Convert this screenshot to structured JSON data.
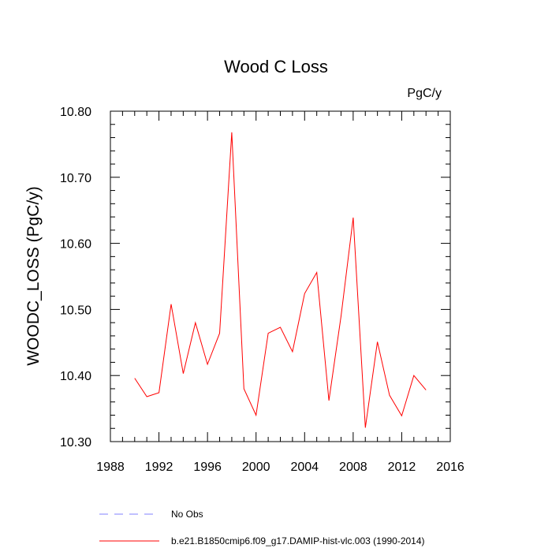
{
  "chart_data": {
    "type": "line",
    "title": "Wood C Loss",
    "units_label": "PgC/y",
    "xlabel": "",
    "ylabel": "WOODC_LOSS  (PgC/y)",
    "xlim": [
      1988,
      2016
    ],
    "ylim": [
      10.3,
      10.8
    ],
    "x_ticks": [
      1988,
      1992,
      1996,
      2000,
      2004,
      2008,
      2012,
      2016
    ],
    "x_tick_labels": [
      "1988",
      "1992",
      "1996",
      "2000",
      "2004",
      "2008",
      "2012",
      "2016"
    ],
    "y_ticks": [
      10.3,
      10.4,
      10.5,
      10.6,
      10.7,
      10.8
    ],
    "y_tick_labels": [
      "10.30",
      "10.40",
      "10.50",
      "10.60",
      "10.70",
      "10.80"
    ],
    "grid": false,
    "series": [
      {
        "name": "b.e21.B1850cmip6.f09_g17.DAMIP-hist-vlc.003 (1990-2014)",
        "color": "#ff0000",
        "style": "solid",
        "x": [
          1990,
          1991,
          1992,
          1993,
          1994,
          1995,
          1996,
          1997,
          1998,
          1999,
          2000,
          2001,
          2002,
          2003,
          2004,
          2005,
          2006,
          2007,
          2008,
          2009,
          2010,
          2011,
          2012,
          2013,
          2014
        ],
        "values": [
          10.396,
          10.368,
          10.374,
          10.508,
          10.403,
          10.48,
          10.417,
          10.464,
          10.768,
          10.38,
          10.34,
          10.464,
          10.473,
          10.436,
          10.524,
          10.556,
          10.362,
          10.49,
          10.639,
          10.321,
          10.451,
          10.37,
          10.339,
          10.4,
          10.378
        ]
      }
    ],
    "legend": {
      "placement": "bottom",
      "entries": [
        {
          "label": "No Obs",
          "color": "#8080ff",
          "style": "dashed"
        },
        {
          "label": "b.e21.B1850cmip6.f09_g17.DAMIP-hist-vlc.003 (1990-2014)",
          "color": "#ff0000",
          "style": "solid"
        }
      ]
    }
  }
}
